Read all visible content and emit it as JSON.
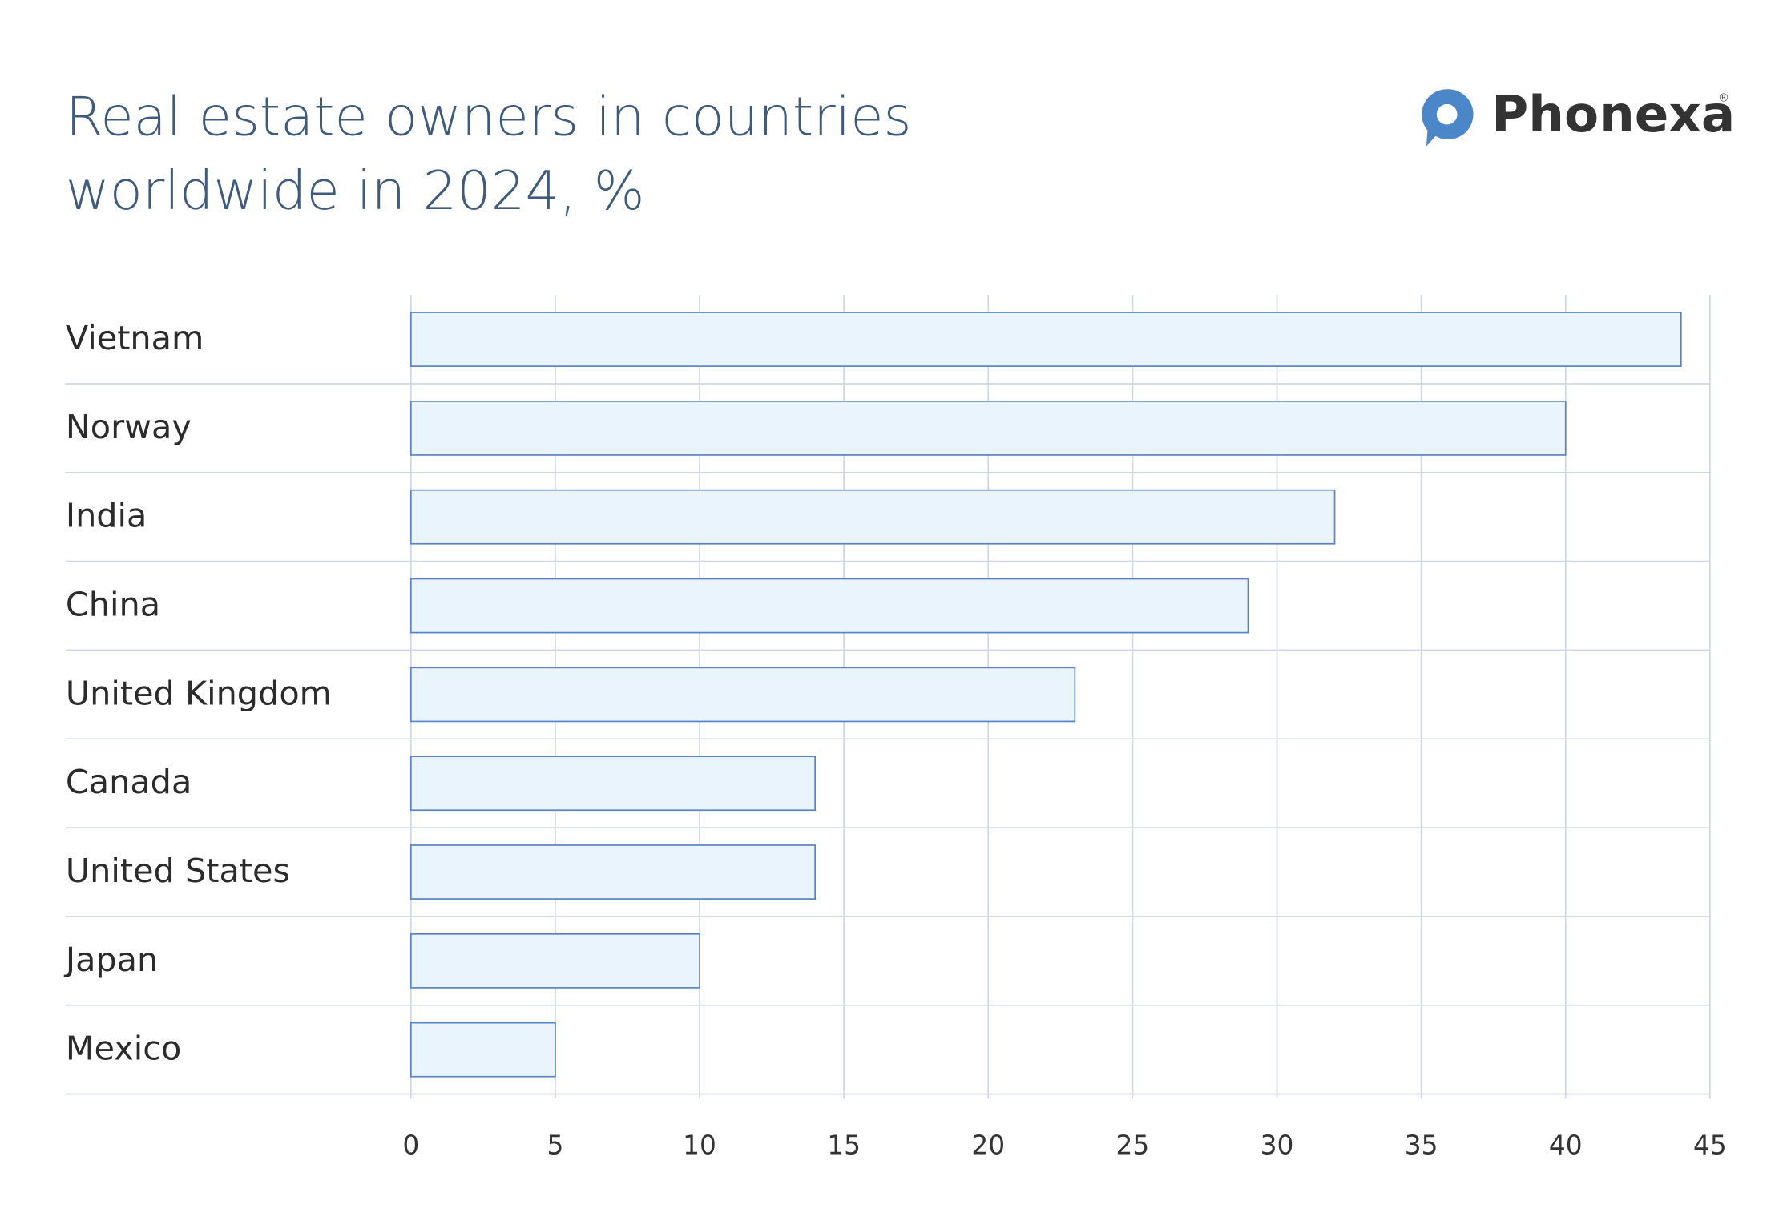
{
  "chart_data": {
    "type": "hbar",
    "title": [
      "Real estate owners in countries",
      "worldwide in 2024, %"
    ],
    "categories": [
      "Vietnam",
      "Norway",
      "India",
      "China",
      "United Kingdom",
      "Canada",
      "United States",
      "Japan",
      "Mexico"
    ],
    "values": [
      44,
      40,
      32,
      29,
      23,
      14,
      14,
      10,
      5
    ],
    "color": "#eaf4fd",
    "edge_color": "#5b84c4",
    "xlim": [
      0,
      45
    ],
    "xticks": [
      0,
      5,
      10,
      15,
      20,
      25,
      30,
      35,
      40,
      45
    ],
    "grid": true
  },
  "logo": {
    "text": "Phonexa",
    "mark": "®"
  }
}
